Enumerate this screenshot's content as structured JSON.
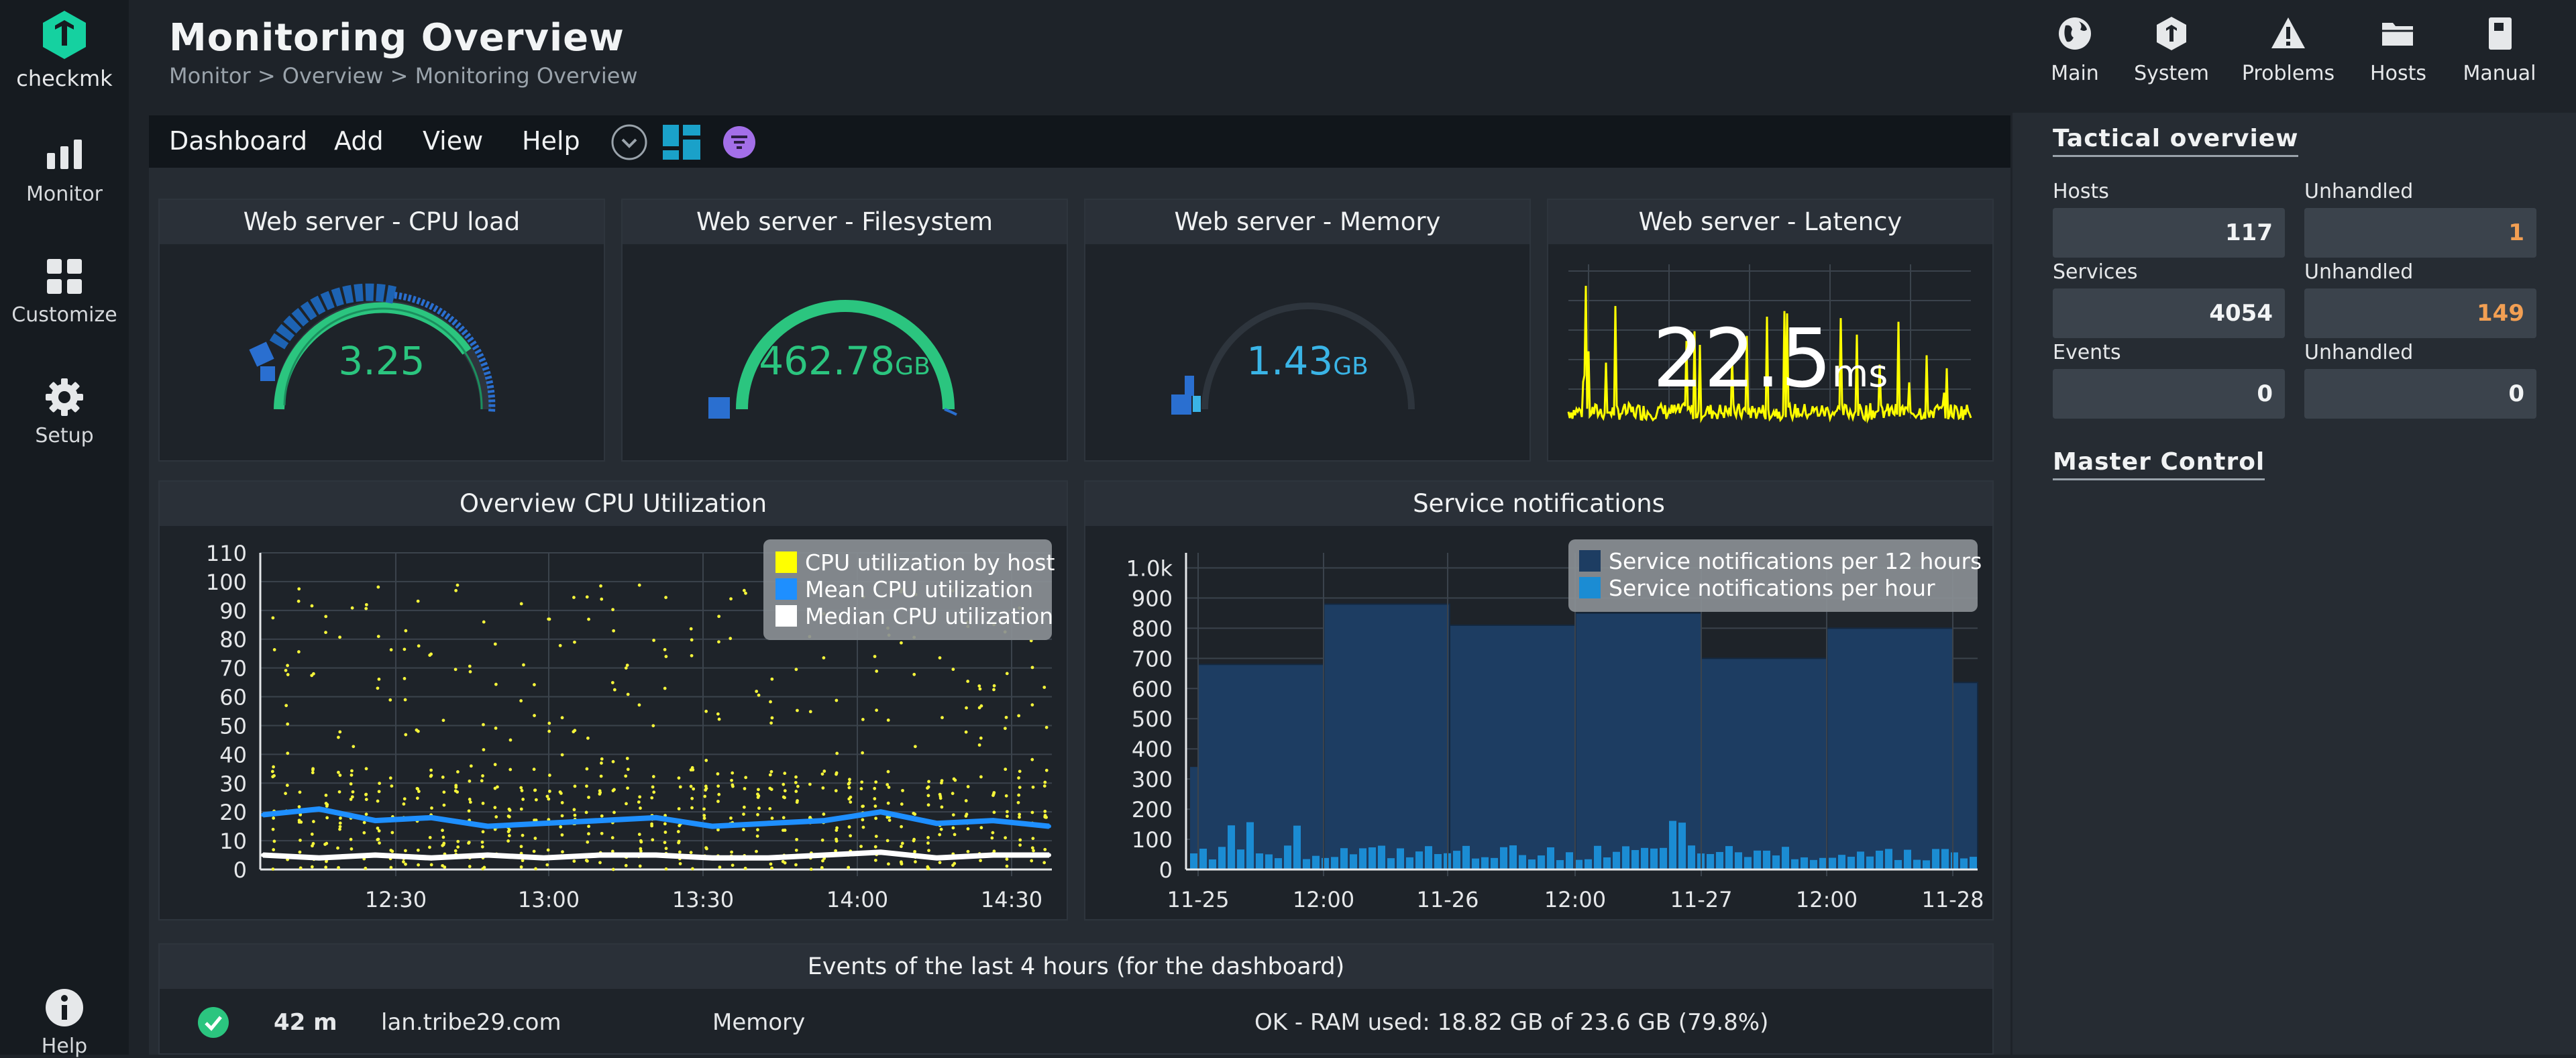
{
  "nav": {
    "logo_text": "checkmk",
    "items": [
      {
        "label": "Monitor",
        "icon": "monitor-icon"
      },
      {
        "label": "Customize",
        "icon": "customize-icon"
      },
      {
        "label": "Setup",
        "icon": "gear-icon"
      }
    ],
    "help_label": "Help"
  },
  "header": {
    "title": "Monitoring Overview",
    "breadcrumb": "Monitor > Overview > Monitoring Overview"
  },
  "menubar": {
    "items": [
      "Dashboard",
      "Add",
      "View",
      "Help"
    ]
  },
  "gauges": [
    {
      "title": "Web server - CPU load",
      "value": "3.25",
      "unit": "",
      "color": "#2bc57f"
    },
    {
      "title": "Web server - Filesystem",
      "value": "462.78",
      "unit": "GB",
      "color": "#2bc57f"
    },
    {
      "title": "Web server - Memory",
      "value": "1.43",
      "unit": "GB",
      "color": "#3ab4e6"
    },
    {
      "title": "Web server - Latency",
      "value": "22.5",
      "unit": "ms",
      "color": "#ffffff"
    }
  ],
  "cpu_chart": {
    "title": "Overview CPU Utilization",
    "legend": [
      "CPU utilization by host",
      "Mean CPU utilization",
      "Median CPU utilization"
    ],
    "yticks": [
      "110",
      "100",
      "90",
      "80",
      "70",
      "60",
      "50",
      "40",
      "30",
      "20",
      "10",
      "0"
    ],
    "xticks": [
      "12:30",
      "13:00",
      "13:30",
      "14:00",
      "14:30"
    ]
  },
  "notif_chart": {
    "title": "Service notifications",
    "legend": [
      "Service notifications per 12 hours",
      "Service notifications per hour"
    ],
    "yticks": [
      "1.0k",
      "900",
      "800",
      "700",
      "600",
      "500",
      "400",
      "300",
      "200",
      "100",
      "0"
    ],
    "xticks": [
      "11-25",
      "12:00",
      "11-26",
      "12:00",
      "11-27",
      "12:00",
      "11-28"
    ]
  },
  "chart_data": [
    {
      "type": "scatter",
      "title": "Overview CPU Utilization",
      "xlabel": "",
      "ylabel": "",
      "ylim": [
        0,
        110
      ],
      "x": [
        "12:15",
        "12:25",
        "12:35",
        "12:45",
        "12:55",
        "13:05",
        "13:15",
        "13:25",
        "13:35",
        "13:45",
        "13:55",
        "14:05",
        "14:15",
        "14:25",
        "14:35"
      ],
      "series": [
        {
          "name": "Mean CPU utilization",
          "values": [
            19,
            21,
            17,
            18,
            15,
            16,
            17,
            18,
            15,
            16,
            17,
            20,
            16,
            17,
            15
          ]
        },
        {
          "name": "Median CPU utilization",
          "values": [
            5,
            4,
            5,
            4,
            5,
            4,
            5,
            5,
            4,
            4,
            5,
            6,
            4,
            5,
            5
          ]
        }
      ]
    },
    {
      "type": "bar",
      "title": "Service notifications",
      "xlabel": "",
      "ylabel": "",
      "ylim": [
        0,
        1050
      ],
      "categories": [
        "11-25 00:00",
        "11-25 12:00",
        "11-26 00:00",
        "11-26 12:00",
        "11-27 00:00",
        "11-27 12:00",
        "11-28 00:00"
      ],
      "series": [
        {
          "name": "Service notifications per 12 hours",
          "values": [
            680,
            880,
            810,
            850,
            700,
            800,
            620
          ]
        }
      ]
    }
  ],
  "right_panel": {
    "buttons": [
      {
        "label": "Main",
        "icon": "globe-icon"
      },
      {
        "label": "System",
        "icon": "system-icon"
      },
      {
        "label": "Problems",
        "icon": "warning-icon"
      },
      {
        "label": "Hosts",
        "icon": "folder-icon"
      },
      {
        "label": "Manual",
        "icon": "book-icon"
      }
    ],
    "tactical_title": "Tactical overview",
    "tactical": [
      {
        "label": "Hosts",
        "value": "117",
        "unhandled_label": "Unhandled",
        "unhandled": "1"
      },
      {
        "label": "Services",
        "value": "4054",
        "unhandled_label": "Unhandled",
        "unhandled": "149"
      },
      {
        "label": "Events",
        "value": "0",
        "unhandled_label": "Unhandled",
        "unhandled": "0"
      }
    ],
    "master_control_title": "Master Control"
  },
  "events": {
    "title": "Events of the last 4 hours (for the dashboard)",
    "rows": [
      {
        "age": "42 m",
        "host": "lan.tribe29.com",
        "service": "Memory",
        "text": "OK - RAM used: 18.82 GB of 23.6 GB (79.8%)"
      }
    ]
  },
  "colors": {
    "accent_green": "#2bc57f",
    "accent_blue": "#3ab4e6",
    "warn_orange": "#f29f53",
    "yellow": "#ffff00"
  }
}
